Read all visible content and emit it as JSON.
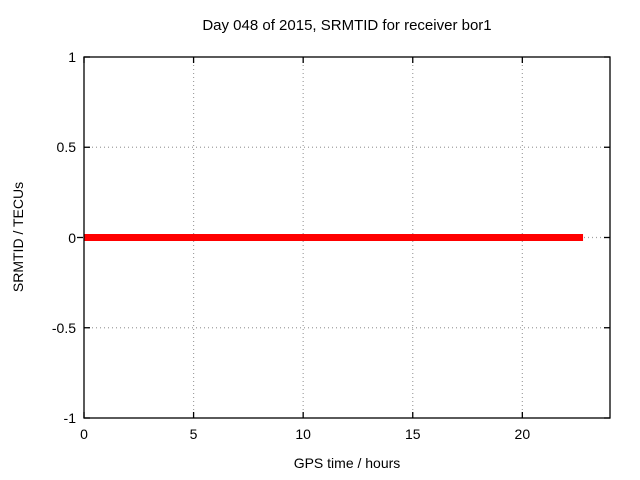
{
  "page": {
    "background": "#ffffff",
    "text_color": "#000000"
  },
  "chart_data": {
    "type": "line",
    "title": "Day 048 of 2015, SRMTID for receiver bor1",
    "xlabel": "GPS time / hours",
    "ylabel": "SRMTID / TECUs",
    "xlim": [
      0,
      24
    ],
    "ylim": [
      -1,
      1
    ],
    "xticks": [
      0,
      5,
      10,
      15,
      20
    ],
    "yticks": [
      1,
      0.5,
      0,
      -0.5,
      -1
    ],
    "grid": true,
    "grid_style": "dotted",
    "grid_color": "#a0a0a0",
    "axis_color": "#000000",
    "legend": "none",
    "series": [
      {
        "name": "SRMTID",
        "color": "#ff0000",
        "linewidth": 7,
        "points": [
          [
            0,
            0
          ],
          [
            22.77,
            0
          ]
        ]
      }
    ]
  }
}
